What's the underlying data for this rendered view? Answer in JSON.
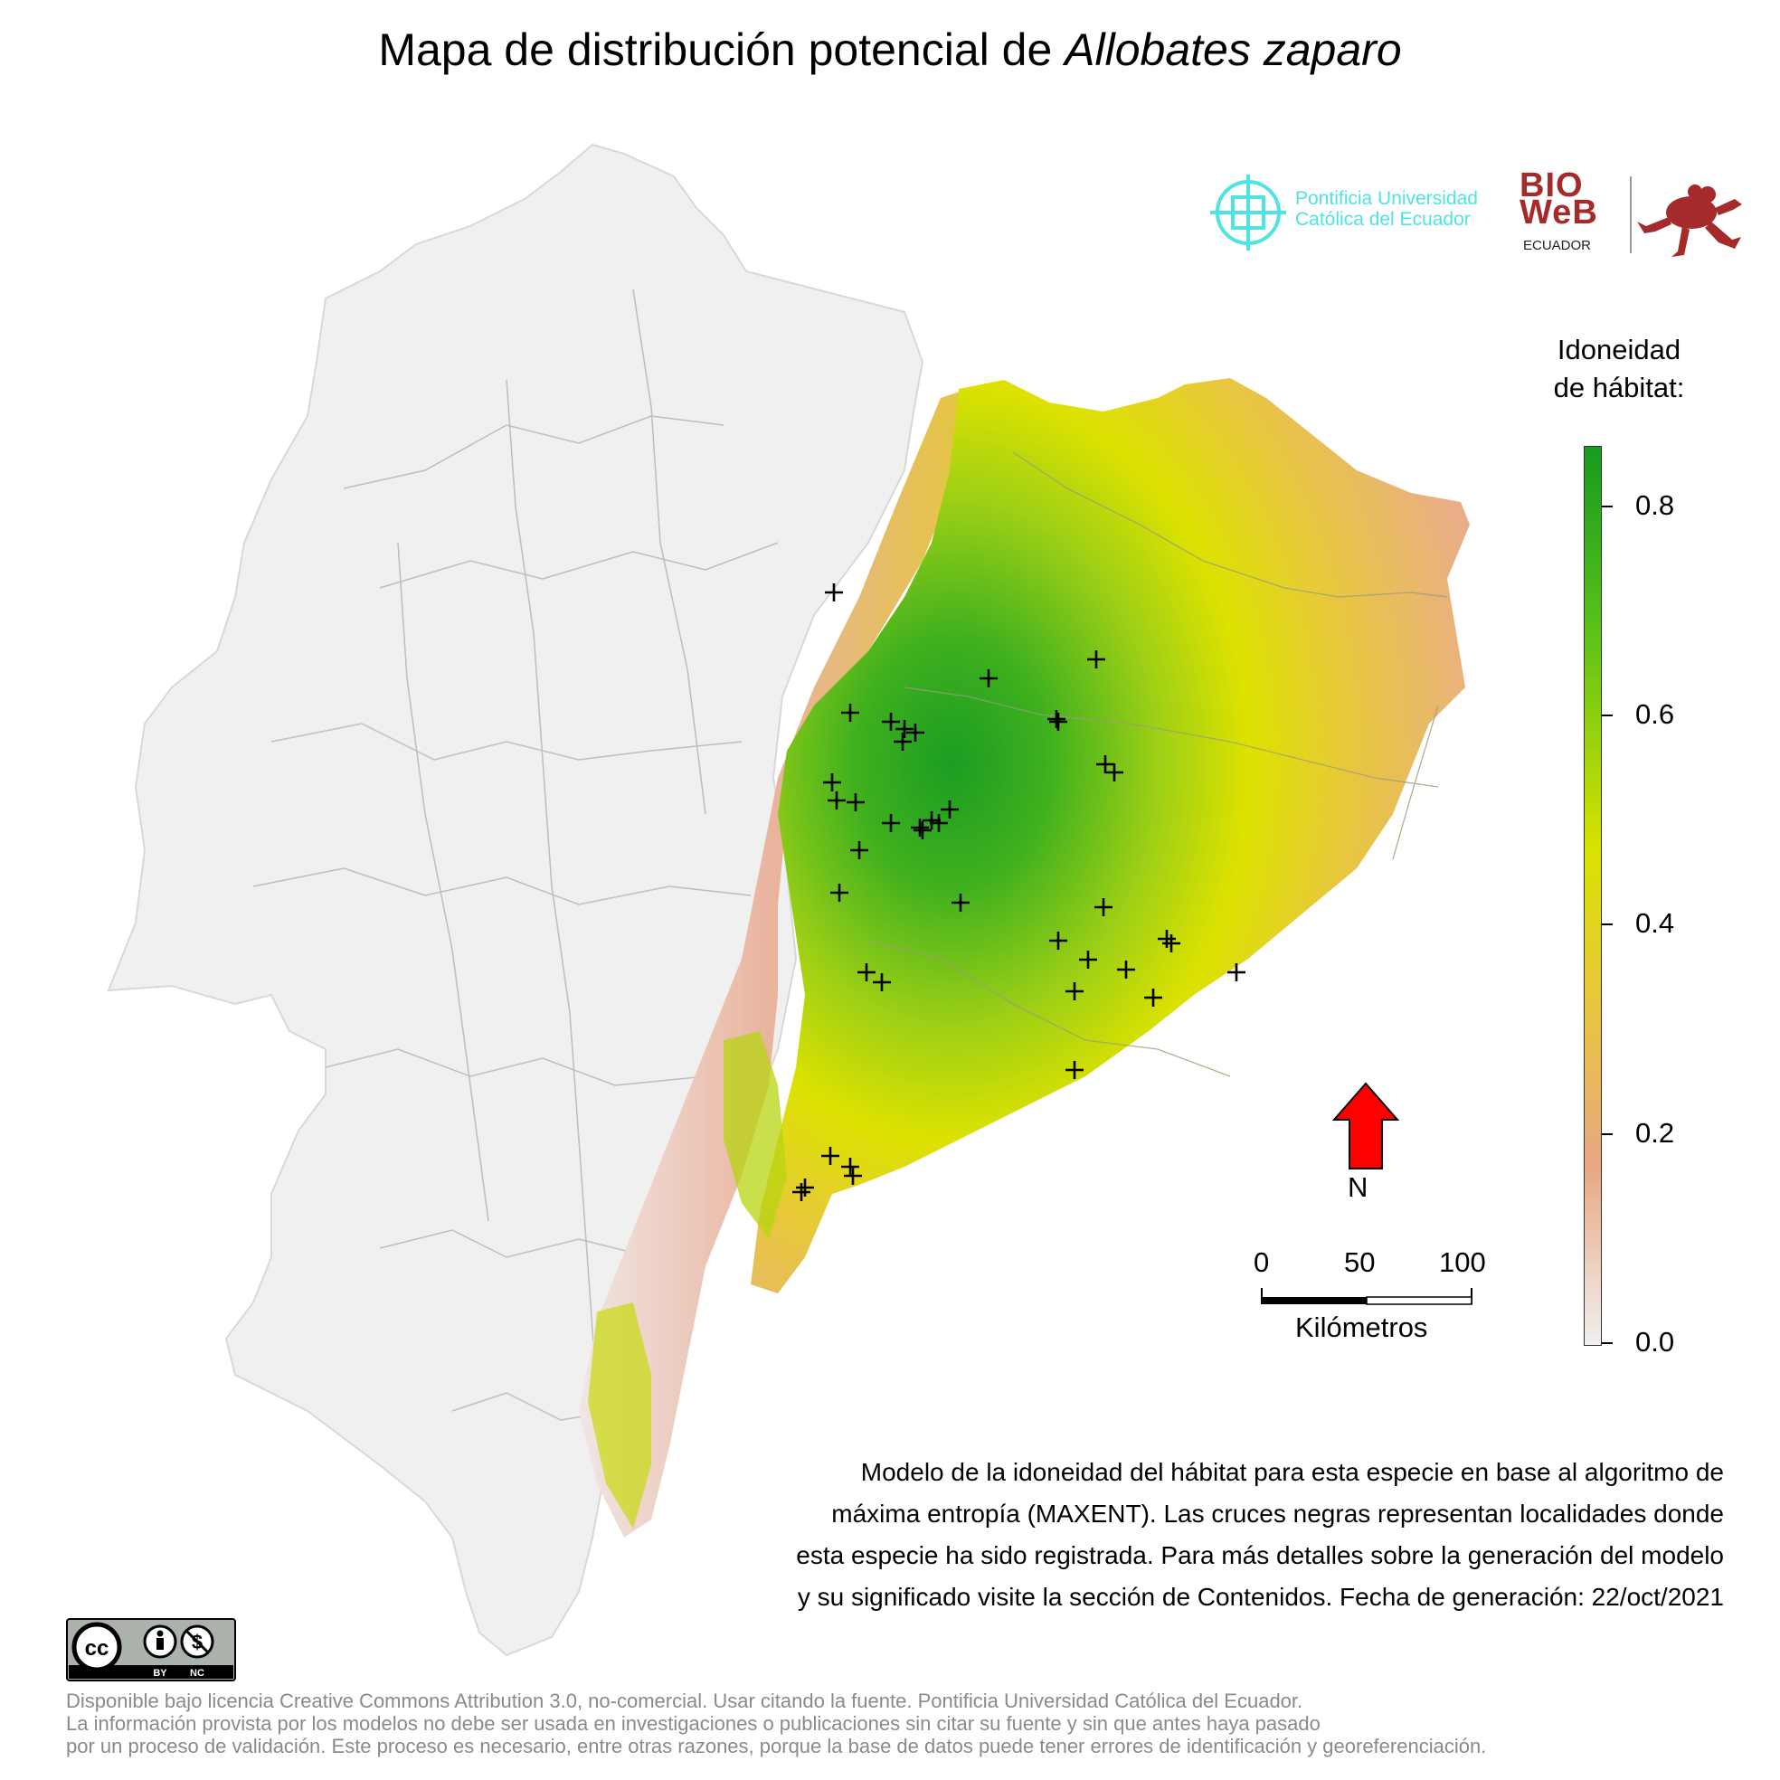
{
  "title": {
    "prefix": "Mapa de distribución potencial de ",
    "species": "Allobates zaparo"
  },
  "logos": {
    "puce_line1": "Pontificia Universidad",
    "puce_line2": "Católica del Ecuador",
    "bioweb_line1": "BIO",
    "bioweb_line2": "WeB",
    "bioweb_sub": "ECUADOR"
  },
  "legend": {
    "title_line1": "Idoneidad",
    "title_line2": "de hábitat:",
    "ticks": [
      "0.8",
      "0.6",
      "0.4",
      "0.2",
      "0.0"
    ],
    "colors": [
      "#169a1f",
      "#59c11a",
      "#d9e300",
      "#e8c63d",
      "#e7a882",
      "#f2f0f0"
    ]
  },
  "north": {
    "label": "N",
    "color": "#ff0000"
  },
  "scale": {
    "labels": [
      "0",
      "50",
      "100"
    ],
    "unit": "Kilómetros"
  },
  "description": [
    "Modelo de la idoneidad del hábitat para esta especie en base al algoritmo de",
    "máxima entropía (MAXENT). Las cruces negras representan localidades donde",
    "esta especie ha sido registrada. Para más detalles sobre la generación del modelo",
    "y su significado visite la sección de Contenidos. Fecha de generación: 22/oct/2021"
  ],
  "cc_badge": {
    "by": "BY",
    "nc": "NC"
  },
  "license": [
    "Disponible bajo licencia Creative Commons Attribution 3.0, no-comercial. Usar citando la fuente. Pontificia Universidad Católica del Ecuador.",
    "La información provista por los modelos no debe ser usada en investigaciones o publicaciones sin citar su fuente y sin que antes haya pasado",
    "por un proceso de validación. Este proceso es necesario, entre otras razones, porque la base de datos puede tener errores de identificación y georeferenciación."
  ]
}
